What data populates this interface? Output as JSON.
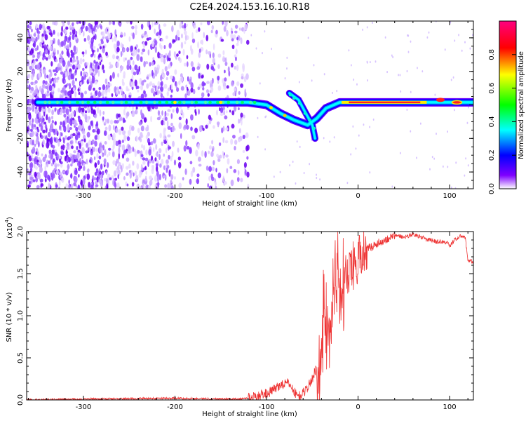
{
  "title": "C2E4.2024.153.16.10.R18",
  "chart_data": [
    {
      "type": "heatmap",
      "panel": "spectrogram",
      "xlabel": "Height of straight line (km)",
      "ylabel": "Frequency (Hz)",
      "xlim": [
        -362,
        126
      ],
      "ylim": [
        -50,
        50
      ],
      "xticks": [
        -300,
        -200,
        -100,
        0,
        100
      ],
      "xtick_labels": [
        "-300",
        "-200",
        "-100",
        "0",
        "100"
      ],
      "yticks": [
        -40,
        -20,
        0,
        20,
        40
      ],
      "ytick_labels": [
        "-40",
        "-20",
        "0",
        "20",
        "40"
      ],
      "colorbar": {
        "label": "Normalized spectral amplitude",
        "range": [
          0,
          1
        ],
        "ticks": [
          0,
          0.2,
          0.4,
          0.6,
          0.8
        ],
        "tick_labels": [
          "0.0",
          "0.2",
          "0.4",
          "0.6",
          "0.8"
        ],
        "colormap": [
          "#ffffff",
          "#7f00ff",
          "#0000ff",
          "#00ffff",
          "#00ff00",
          "#ffff00",
          "#ff0000",
          "#ff0080"
        ]
      },
      "ridge": [
        {
          "x": -350,
          "y": 1.5
        },
        {
          "x": -300,
          "y": 1.5
        },
        {
          "x": -250,
          "y": 1.5
        },
        {
          "x": -200,
          "y": 1.5
        },
        {
          "x": -150,
          "y": 1.5
        },
        {
          "x": -120,
          "y": 1.5
        },
        {
          "x": -100,
          "y": 0
        },
        {
          "x": -85,
          "y": -5
        },
        {
          "x": -70,
          "y": -9
        },
        {
          "x": -55,
          "y": -12
        },
        {
          "x": -45,
          "y": -8
        },
        {
          "x": -35,
          "y": -2
        },
        {
          "x": -20,
          "y": 1.5
        },
        {
          "x": 0,
          "y": 1.5
        },
        {
          "x": 50,
          "y": 1.5
        },
        {
          "x": 100,
          "y": 1.5
        },
        {
          "x": 125,
          "y": 1.5
        }
      ],
      "branch": [
        {
          "x": -75,
          "y": 7
        },
        {
          "x": -65,
          "y": 3
        },
        {
          "x": -57,
          "y": -5
        },
        {
          "x": -50,
          "y": -12
        },
        {
          "x": -47,
          "y": -20
        }
      ]
    },
    {
      "type": "line",
      "panel": "snr",
      "xlabel": "Height of straight line (km)",
      "ylabel": "SNR (10 * v/v)",
      "exponent_label": "(x10",
      "exponent_power": "4",
      "exponent_close": ")",
      "xlim": [
        -362,
        126
      ],
      "ylim": [
        0,
        2.0
      ],
      "xticks": [
        -300,
        -200,
        -100,
        0,
        100
      ],
      "xtick_labels": [
        "-300",
        "-200",
        "-100",
        "0",
        "100"
      ],
      "yticks": [
        0,
        0.5,
        1.0,
        1.5,
        2.0
      ],
      "ytick_labels": [
        "0.0",
        "0.5",
        "1.0",
        "1.5",
        "2.0"
      ],
      "color": "#ee3333",
      "series": [
        {
          "x": [
            -362,
            -300,
            -200,
            -130,
            -110,
            -95,
            -85,
            -75,
            -70,
            -65,
            -60,
            -55,
            -50,
            -45,
            -40,
            -37,
            -35,
            -33,
            -30,
            -27,
            -25,
            -22,
            -20,
            -15,
            -10,
            -5,
            0,
            5,
            10,
            15,
            20,
            25,
            30,
            35,
            40,
            45,
            50,
            55,
            60,
            65,
            70,
            75,
            80,
            85,
            90,
            95,
            97,
            100,
            105,
            110,
            113,
            117,
            120,
            126
          ],
          "y": [
            0.0,
            0.01,
            0.02,
            0.01,
            0.04,
            0.1,
            0.18,
            0.2,
            0.1,
            0.04,
            0.08,
            0.15,
            0.25,
            0.4,
            0.7,
            1.25,
            0.95,
            1.1,
            1.35,
            1.5,
            1.85,
            1.75,
            1.45,
            1.6,
            1.5,
            1.68,
            1.7,
            1.75,
            1.8,
            1.82,
            1.85,
            1.88,
            1.9,
            1.93,
            1.95,
            1.95,
            1.93,
            1.95,
            1.97,
            1.95,
            1.93,
            1.9,
            1.9,
            1.88,
            1.88,
            1.87,
            1.88,
            1.82,
            1.9,
            1.93,
            1.95,
            1.93,
            1.66,
            1.64
          ]
        }
      ]
    }
  ]
}
